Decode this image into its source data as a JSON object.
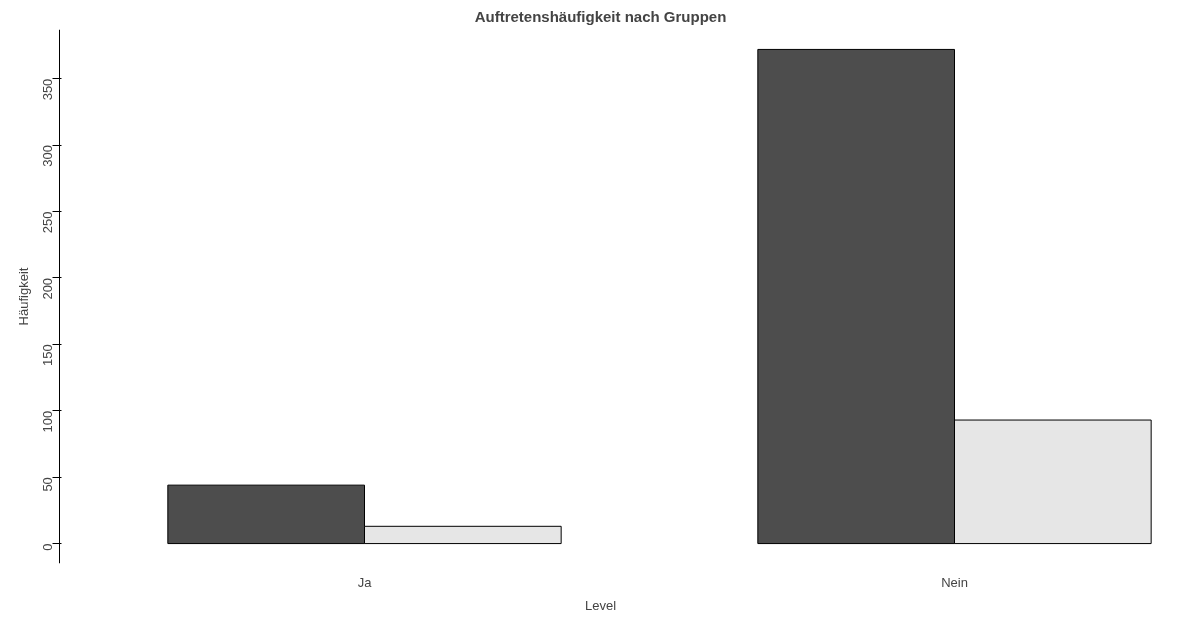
{
  "chart_data": {
    "type": "bar",
    "title": "Auftretenshäufigkeit nach Gruppen",
    "xlabel": "Level",
    "ylabel": "Häufigkeit",
    "categories": [
      "Ja",
      "Nein"
    ],
    "series": [
      {
        "color": "#4d4d4d",
        "values": [
          44,
          372
        ]
      },
      {
        "color": "#e6e6e6",
        "values": [
          13,
          93
        ]
      }
    ],
    "ylim": [
      -15,
      387
    ],
    "yticks": [
      0,
      50,
      100,
      150,
      200,
      250,
      300,
      350
    ],
    "grid": false
  }
}
